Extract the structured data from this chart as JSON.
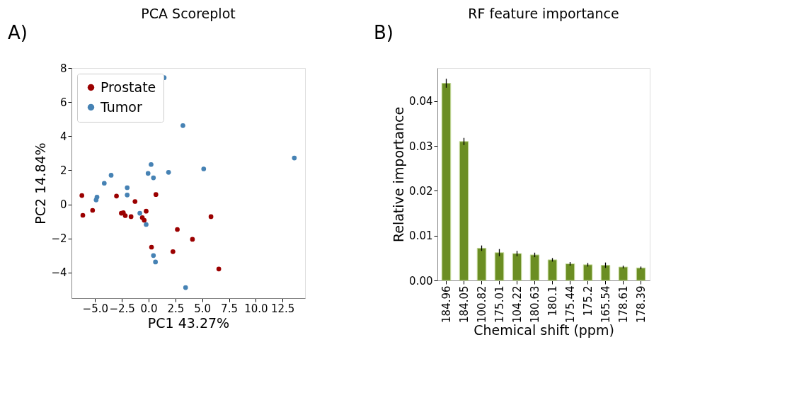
{
  "chart_data": [
    {
      "type": "scatter",
      "title": "PCA Scoreplot",
      "xlabel": "PC1 43.27%",
      "ylabel": "PC2 14.84%",
      "annotations": [
        "A)"
      ],
      "xlim": [
        -7.2,
        14.6
      ],
      "ylim": [
        -5.5,
        8.0
      ],
      "xticks": [
        {
          "value": -5,
          "label": "−5.0"
        },
        {
          "value": -2.5,
          "label": "−2.5"
        },
        {
          "value": 0,
          "label": "0.0"
        },
        {
          "value": 2.5,
          "label": "2.5"
        },
        {
          "value": 5,
          "label": "5.0"
        },
        {
          "value": 7.5,
          "label": "7.5"
        },
        {
          "value": 10,
          "label": "10.0"
        },
        {
          "value": 12.5,
          "label": "12.5"
        }
      ],
      "yticks": [
        {
          "value": -4,
          "label": "−4"
        },
        {
          "value": -2,
          "label": "−2"
        },
        0,
        2,
        4,
        6,
        8
      ],
      "grid": false,
      "legend": "top left",
      "marker": "circle",
      "series": [
        {
          "name": "Prostate",
          "color": "#9b0000",
          "x": [
            -6.23,
            -6.14,
            -5.23,
            -3.0,
            -1.27,
            -2.55,
            -2.36,
            -2.18,
            -1.64,
            -0.23,
            -0.59,
            -0.41,
            0.68,
            2.68,
            4.09,
            0.27,
            2.27,
            5.82,
            6.55
          ],
          "values": [
            0.52,
            -0.64,
            -0.35,
            0.49,
            0.17,
            -0.52,
            -0.49,
            -0.66,
            -0.72,
            -0.4,
            -0.78,
            -0.93,
            0.58,
            -1.47,
            -2.05,
            -2.51,
            -2.77,
            -0.72,
            -3.79
          ]
        },
        {
          "name": "Tumor",
          "color": "#4682b4",
          "x": [
            1.45,
            3.2,
            13.6,
            0.23,
            1.86,
            -0.05,
            0.45,
            5.14,
            -3.5,
            -4.14,
            -2.0,
            -2.0,
            -4.82,
            -4.9,
            -0.82,
            -0.23,
            0.45,
            0.64,
            3.45
          ],
          "values": [
            7.43,
            4.62,
            2.72,
            2.34,
            1.88,
            1.82,
            1.56,
            2.08,
            1.71,
            1.24,
            0.98,
            0.55,
            0.43,
            0.26,
            -0.52,
            -1.18,
            -3.0,
            -3.38,
            -4.88
          ]
        }
      ]
    },
    {
      "type": "bar",
      "title": "RF feature importance",
      "xlabel": "Chemical shift (ppm)",
      "ylabel": "Relative importance",
      "annotations": [
        "B)"
      ],
      "categories": [
        "184.96",
        "184.05",
        "100.82",
        "175.01",
        "104.22",
        "180.63",
        "180.1",
        "175.44",
        "175.2",
        "165.54",
        "178.61",
        "178.39"
      ],
      "values": [
        0.044,
        0.031,
        0.0072,
        0.0062,
        0.006,
        0.0057,
        0.0046,
        0.0037,
        0.0035,
        0.0034,
        0.003,
        0.0028
      ],
      "errors": [
        0.001,
        0.0008,
        0.0006,
        0.0008,
        0.0006,
        0.0005,
        0.0004,
        0.0004,
        0.0004,
        0.0006,
        0.0003,
        0.0003
      ],
      "color": "#6b8e23",
      "ylim": [
        0,
        0.0474
      ],
      "yticks": [
        {
          "value": 0,
          "label": "0.00"
        },
        {
          "value": 0.01,
          "label": "0.01"
        },
        {
          "value": 0.02,
          "label": "0.02"
        },
        {
          "value": 0.03,
          "label": "0.03"
        },
        {
          "value": 0.04,
          "label": "0.04"
        }
      ],
      "grid": false
    }
  ]
}
